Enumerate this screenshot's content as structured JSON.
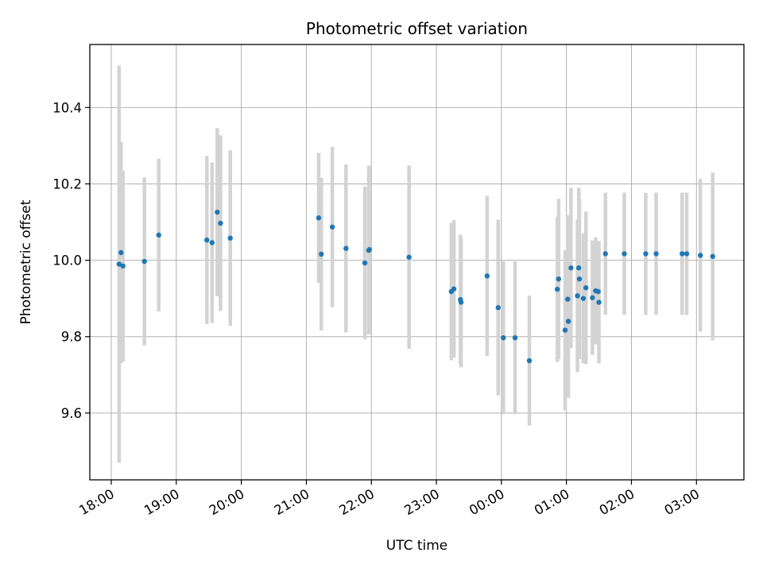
{
  "chart_data": {
    "type": "scatter",
    "title": "Photometric offset variation",
    "xlabel": "UTC time",
    "ylabel": "Photometric offset",
    "xlim": [
      -0.33,
      9.73
    ],
    "ylim": [
      9.425,
      10.565
    ],
    "x_unit": "hours",
    "x_tick_positions": [
      0,
      1,
      2,
      3,
      4,
      5,
      6,
      7,
      8,
      9
    ],
    "x_tick_labels": [
      "18:00",
      "19:00",
      "20:00",
      "21:00",
      "22:00",
      "23:00",
      "00:00",
      "01:00",
      "02:00",
      "03:00"
    ],
    "y_ticks": [
      9.6,
      9.8,
      10.0,
      10.2,
      10.4
    ],
    "y_tick_labels": [
      "9.6",
      "9.8",
      "10.0",
      "10.2",
      "10.4"
    ],
    "grid": true,
    "point_color": "#1f77b4",
    "errorbar_color": "#d3d3d3",
    "series": [
      {
        "x": [
          0.12,
          0.15,
          0.18,
          0.51,
          0.73,
          1.47,
          1.55,
          1.63,
          1.68,
          1.83,
          3.19,
          3.23,
          3.4,
          3.61,
          3.9,
          3.96,
          3.97,
          4.58,
          5.23,
          5.27,
          5.37,
          5.38,
          5.78,
          5.95,
          6.03,
          6.21,
          6.43,
          6.86,
          6.88,
          6.98,
          7.02,
          7.03,
          7.07,
          7.17,
          7.19,
          7.2,
          7.26,
          7.3,
          7.4,
          7.45,
          7.49,
          7.5,
          7.6,
          7.89,
          8.22,
          8.38,
          8.78,
          8.85,
          9.06,
          9.25
        ],
        "y": [
          9.99,
          10.02,
          9.985,
          9.997,
          10.066,
          10.053,
          10.046,
          10.126,
          10.097,
          10.058,
          10.111,
          10.016,
          10.087,
          10.031,
          9.993,
          10.026,
          10.028,
          10.008,
          9.918,
          9.925,
          9.897,
          9.89,
          9.959,
          9.876,
          9.797,
          9.797,
          9.737,
          9.924,
          9.951,
          9.817,
          9.898,
          9.84,
          9.98,
          9.907,
          9.98,
          9.951,
          9.9,
          9.928,
          9.902,
          9.92,
          9.918,
          9.89,
          10.017,
          10.017,
          10.017,
          10.017,
          10.017,
          10.017,
          10.013,
          10.01
        ],
        "yerr": [
          0.52,
          0.29,
          0.25,
          0.22,
          0.2,
          0.22,
          0.21,
          0.22,
          0.23,
          0.23,
          0.17,
          0.2,
          0.21,
          0.22,
          0.2,
          0.22,
          0.22,
          0.24,
          0.18,
          0.18,
          0.17,
          0.17,
          0.21,
          0.23,
          0.2,
          0.2,
          0.17,
          0.19,
          0.21,
          0.21,
          0.22,
          0.2,
          0.21,
          0.2,
          0.21,
          0.21,
          0.17,
          0.2,
          0.15,
          0.14,
          0.13,
          0.16,
          0.16,
          0.16,
          0.16,
          0.16,
          0.16,
          0.16,
          0.2,
          0.22
        ]
      }
    ]
  }
}
